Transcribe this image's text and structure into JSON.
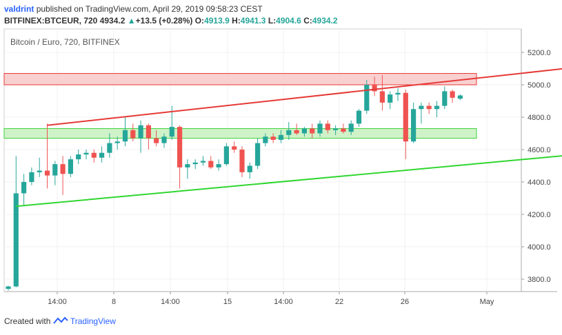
{
  "header": {
    "user": "valdrint",
    "published": "published on TradingView.com, April 29, 2019 09:58:23 CEST",
    "symbol": "BITFINEX:BTCEUR, 720",
    "last": "4934.2",
    "change": "+13.5 (+0.28%)",
    "o_label": "O:",
    "o_value": "4913.9",
    "h_label": "H:",
    "h_value": "4941.3",
    "l_label": "L:",
    "l_value": "4904.6",
    "c_label": "C:",
    "c_value": "4934.2"
  },
  "footer": {
    "created_with": "Created with",
    "brand": "TradingView"
  },
  "colors": {
    "up": "#26a69a",
    "down": "#ef5350",
    "resistance_fill": "#f8c8c8",
    "resistance_stroke": "#e53935",
    "support_fill": "#c8f0c0",
    "support_stroke": "#3bd43b",
    "upper_line": "#e53935",
    "lower_line": "#2fd62f"
  },
  "chart_data": {
    "type": "candlestick",
    "title": "Bitcoin / Euro, 720, BITFINEX",
    "y_ticks": [
      "5200.0",
      "5000.0",
      "4800.0",
      "4600.0",
      "4400.0",
      "4200.0",
      "4000.0",
      "3800.0"
    ],
    "y_range": [
      3700,
      5300
    ],
    "x_labels": [
      "14:00",
      "8",
      "14:00",
      "15",
      "14:00",
      "22",
      "26",
      "May"
    ],
    "candles": [
      [
        3740,
        3760,
        3730,
        3755
      ],
      [
        3755,
        4560,
        3750,
        4330
      ],
      [
        4330,
        4450,
        4250,
        4400
      ],
      [
        4400,
        4490,
        4380,
        4460
      ],
      [
        4460,
        4550,
        4430,
        4470
      ],
      [
        4470,
        4760,
        4360,
        4440
      ],
      [
        4440,
        4530,
        4380,
        4510
      ],
      [
        4510,
        4560,
        4320,
        4450
      ],
      [
        4450,
        4560,
        4430,
        4540
      ],
      [
        4540,
        4600,
        4510,
        4570
      ],
      [
        4570,
        4600,
        4540,
        4580
      ],
      [
        4580,
        4600,
        4520,
        4550
      ],
      [
        4550,
        4620,
        4520,
        4580
      ],
      [
        4580,
        4700,
        4550,
        4640
      ],
      [
        4640,
        4680,
        4600,
        4650
      ],
      [
        4650,
        4800,
        4620,
        4720
      ],
      [
        4720,
        4760,
        4650,
        4670
      ],
      [
        4670,
        4780,
        4580,
        4750
      ],
      [
        4750,
        4760,
        4600,
        4670
      ],
      [
        4670,
        4720,
        4620,
        4640
      ],
      [
        4640,
        4700,
        4610,
        4680
      ],
      [
        4680,
        4870,
        4660,
        4740
      ],
      [
        4740,
        4750,
        4360,
        4490
      ],
      [
        4490,
        4540,
        4420,
        4510
      ],
      [
        4510,
        4540,
        4480,
        4520
      ],
      [
        4520,
        4560,
        4500,
        4530
      ],
      [
        4530,
        4560,
        4480,
        4490
      ],
      [
        4490,
        4540,
        4470,
        4510
      ],
      [
        4510,
        4640,
        4500,
        4620
      ],
      [
        4620,
        4650,
        4580,
        4600
      ],
      [
        4600,
        4620,
        4430,
        4460
      ],
      [
        4460,
        4520,
        4420,
        4500
      ],
      [
        4500,
        4670,
        4480,
        4640
      ],
      [
        4640,
        4700,
        4620,
        4680
      ],
      [
        4680,
        4700,
        4640,
        4660
      ],
      [
        4660,
        4720,
        4640,
        4690
      ],
      [
        4690,
        4770,
        4660,
        4720
      ],
      [
        4720,
        4760,
        4690,
        4700
      ],
      [
        4700,
        4740,
        4680,
        4730
      ],
      [
        4730,
        4760,
        4670,
        4700
      ],
      [
        4700,
        4780,
        4680,
        4760
      ],
      [
        4760,
        4780,
        4700,
        4720
      ],
      [
        4720,
        4750,
        4690,
        4730
      ],
      [
        4730,
        4760,
        4700,
        4710
      ],
      [
        4710,
        4780,
        4690,
        4760
      ],
      [
        4760,
        4850,
        4740,
        4840
      ],
      [
        4840,
        5030,
        4820,
        5000
      ],
      [
        5000,
        5050,
        4930,
        4960
      ],
      [
        4960,
        5060,
        4840,
        4890
      ],
      [
        4890,
        4960,
        4850,
        4940
      ],
      [
        4940,
        4980,
        4900,
        4950
      ],
      [
        4950,
        4970,
        4540,
        4650
      ],
      [
        4650,
        4890,
        4640,
        4850
      ],
      [
        4850,
        4890,
        4760,
        4870
      ],
      [
        4870,
        4890,
        4820,
        4850
      ],
      [
        4850,
        4900,
        4800,
        4870
      ],
      [
        4870,
        4990,
        4850,
        4960
      ],
      [
        4960,
        4970,
        4890,
        4920
      ],
      [
        4914,
        4941,
        4905,
        4934
      ]
    ],
    "zones": [
      {
        "name": "resistance",
        "low": 5000,
        "high": 5070
      },
      {
        "name": "support",
        "low": 4670,
        "high": 4730
      }
    ],
    "trendlines": [
      {
        "name": "upper",
        "from": [
          5,
          4750
        ],
        "to": [
          78,
          5135
        ]
      },
      {
        "name": "lower",
        "from": [
          1,
          4250
        ],
        "to": [
          82,
          4610
        ]
      }
    ],
    "grid": true
  }
}
